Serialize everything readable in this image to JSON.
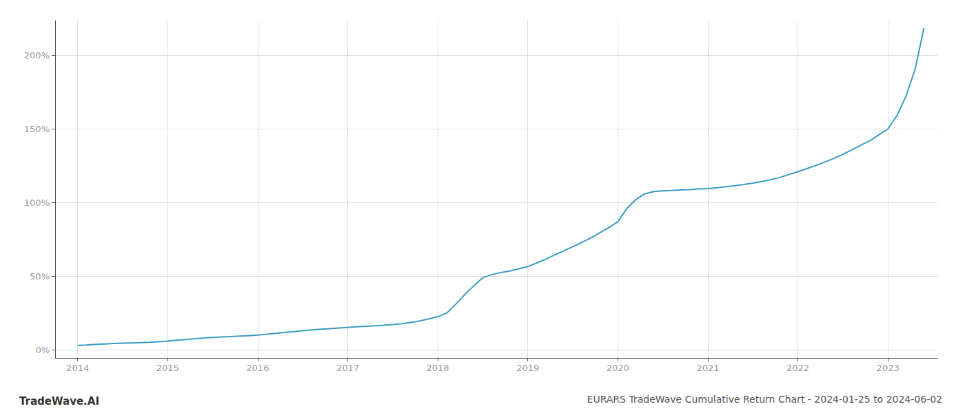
{
  "chart_data": {
    "type": "line",
    "title": "EURARS TradeWave Cumulative Return Chart - 2024-01-25 to 2024-06-02",
    "annotations": [
      "TradeWave.AI"
    ],
    "color": "#3a9cc0",
    "grid": true,
    "xlim": [
      2013.75,
      2023.55
    ],
    "ylim": [
      -0.055,
      2.235
    ],
    "xticks": [
      2014,
      2015,
      2016,
      2017,
      2018,
      2019,
      2020,
      2021,
      2022,
      2023
    ],
    "yticks": [
      {
        "value": 0.0,
        "label": "0%"
      },
      {
        "value": 0.5,
        "label": "50%"
      },
      {
        "value": 1.0,
        "label": "100%"
      },
      {
        "value": 1.5,
        "label": "150%"
      },
      {
        "value": 2.0,
        "label": "200%"
      }
    ],
    "x": [
      2014.0,
      2014.1,
      2014.2,
      2014.3,
      2014.4,
      2014.5,
      2014.6,
      2014.7,
      2014.8,
      2014.9,
      2015.0,
      2015.1,
      2015.2,
      2015.3,
      2015.4,
      2015.5,
      2015.6,
      2015.7,
      2015.8,
      2015.9,
      2016.0,
      2016.1,
      2016.2,
      2016.3,
      2016.4,
      2016.5,
      2016.6,
      2016.7,
      2016.8,
      2016.9,
      2017.0,
      2017.1,
      2017.2,
      2017.3,
      2017.4,
      2017.5,
      2017.6,
      2017.7,
      2017.8,
      2017.9,
      2018.0,
      2018.1,
      2018.2,
      2018.3,
      2018.4,
      2018.5,
      2018.6,
      2018.7,
      2018.8,
      2018.9,
      2019.0,
      2019.1,
      2019.2,
      2019.3,
      2019.4,
      2019.5,
      2019.6,
      2019.7,
      2019.8,
      2019.9,
      2020.0,
      2020.1,
      2020.2,
      2020.3,
      2020.4,
      2020.5,
      2020.6,
      2020.7,
      2020.8,
      2020.9,
      2021.0,
      2021.1,
      2021.2,
      2021.3,
      2021.4,
      2021.5,
      2021.6,
      2021.7,
      2021.8,
      2021.9,
      2022.0,
      2022.1,
      2022.2,
      2022.3,
      2022.4,
      2022.5,
      2022.6,
      2022.7,
      2022.8,
      2022.9,
      2023.0,
      2023.1,
      2023.2,
      2023.3,
      2023.4
    ],
    "values": [
      0.03,
      0.033,
      0.037,
      0.04,
      0.043,
      0.045,
      0.047,
      0.049,
      0.051,
      0.055,
      0.06,
      0.065,
      0.07,
      0.075,
      0.08,
      0.084,
      0.087,
      0.09,
      0.093,
      0.096,
      0.1,
      0.106,
      0.112,
      0.118,
      0.124,
      0.13,
      0.135,
      0.14,
      0.144,
      0.148,
      0.152,
      0.156,
      0.16,
      0.163,
      0.167,
      0.172,
      0.178,
      0.186,
      0.196,
      0.21,
      0.225,
      0.25,
      0.31,
      0.375,
      0.435,
      0.49,
      0.51,
      0.525,
      0.535,
      0.55,
      0.565,
      0.59,
      0.615,
      0.645,
      0.672,
      0.7,
      0.73,
      0.76,
      0.795,
      0.83,
      0.87,
      0.96,
      1.02,
      1.06,
      1.075,
      1.08,
      1.082,
      1.085,
      1.088,
      1.092,
      1.095,
      1.1,
      1.108,
      1.115,
      1.123,
      1.132,
      1.143,
      1.155,
      1.17,
      1.19,
      1.21,
      1.23,
      1.252,
      1.275,
      1.3,
      1.328,
      1.358,
      1.39,
      1.42,
      1.46,
      1.5,
      1.59,
      1.72,
      1.9,
      2.185
    ]
  }
}
